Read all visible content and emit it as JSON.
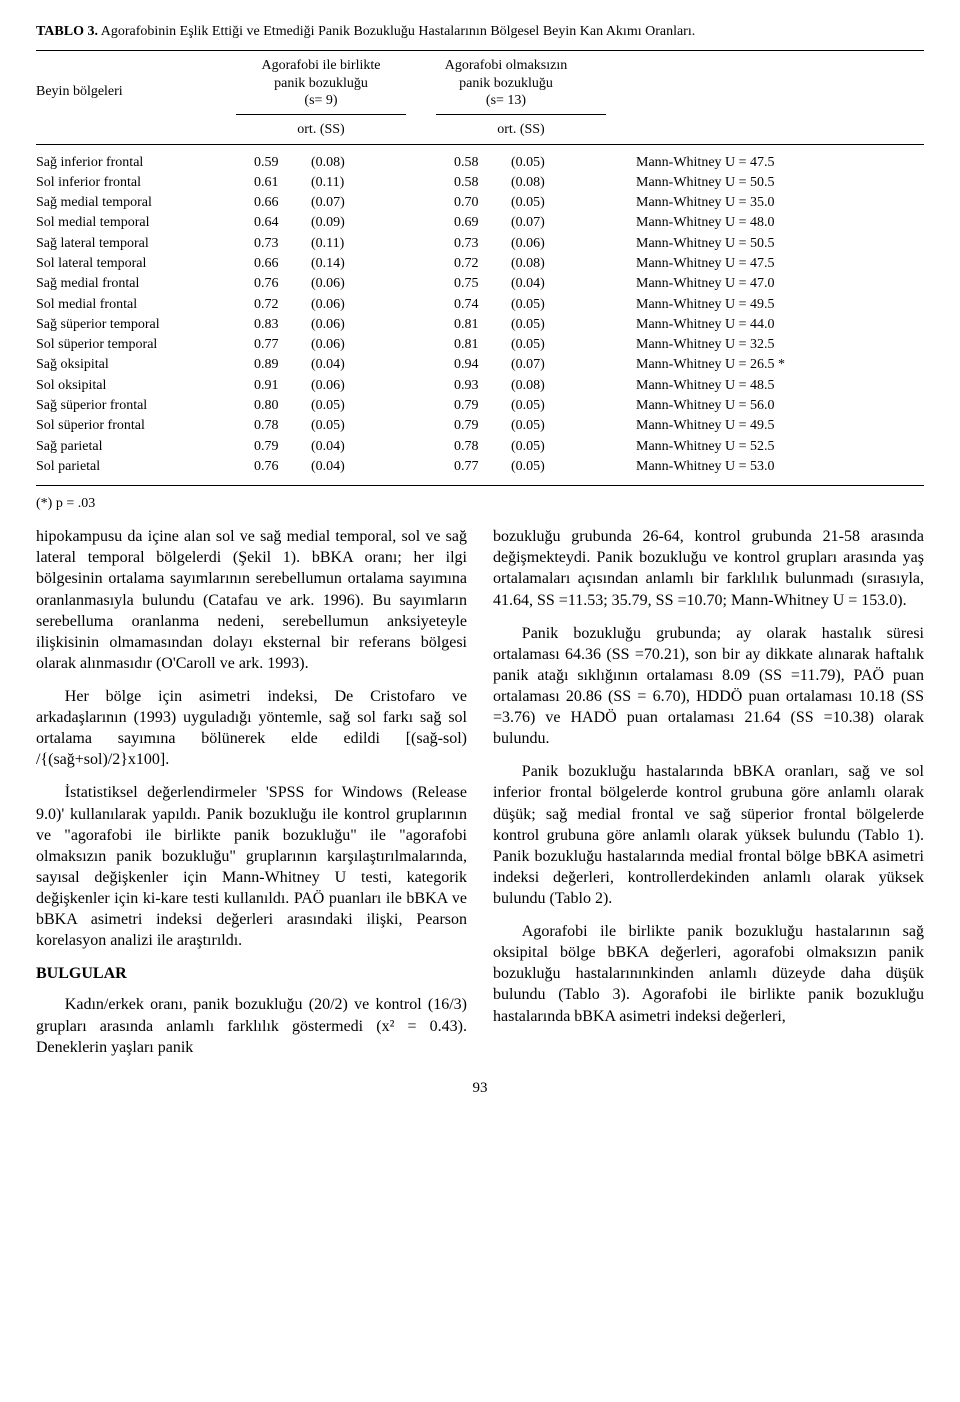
{
  "table": {
    "label": "TABLO 3.",
    "caption": "Agorafobinin Eşlik Ettiği ve Etmediği Panik Bozukluğu Hastalarının Bölgesel Beyin Kan Akımı Oranları.",
    "row_header": "Beyin bölgeleri",
    "group1": {
      "l1": "Agorafobi ile birlikte",
      "l2": "panik bozukluğu",
      "l3": "(s= 9)"
    },
    "group2": {
      "l1": "Agorafobi olmaksızın",
      "l2": "panik bozukluğu",
      "l3": "(s= 13)"
    },
    "subheader": "ort. (SS)",
    "rows": [
      {
        "region": "Sağ inferior frontal",
        "m1": "0.59",
        "s1": "(0.08)",
        "m2": "0.58",
        "s2": "(0.05)",
        "stat": "Mann-Whitney U = 47.5"
      },
      {
        "region": "Sol  inferior frontal",
        "m1": "0.61",
        "s1": "(0.11)",
        "m2": "0.58",
        "s2": "(0.08)",
        "stat": "Mann-Whitney U = 50.5"
      },
      {
        "region": "Sağ medial temporal",
        "m1": "0.66",
        "s1": "(0.07)",
        "m2": "0.70",
        "s2": "(0.05)",
        "stat": "Mann-Whitney U = 35.0"
      },
      {
        "region": "Sol medial temporal",
        "m1": "0.64",
        "s1": "(0.09)",
        "m2": "0.69",
        "s2": "(0.07)",
        "stat": "Mann-Whitney U = 48.0"
      },
      {
        "region": "Sağ lateral temporal",
        "m1": "0.73",
        "s1": "(0.11)",
        "m2": "0.73",
        "s2": "(0.06)",
        "stat": "Mann-Whitney U = 50.5"
      },
      {
        "region": "Sol lateral temporal",
        "m1": "0.66",
        "s1": "(0.14)",
        "m2": "0.72",
        "s2": "(0.08)",
        "stat": "Mann-Whitney U = 47.5"
      },
      {
        "region": "Sağ medial frontal",
        "m1": "0.76",
        "s1": "(0.06)",
        "m2": "0.75",
        "s2": "(0.04)",
        "stat": "Mann-Whitney U = 47.0"
      },
      {
        "region": "Sol medial frontal",
        "m1": "0.72",
        "s1": "(0.06)",
        "m2": "0.74",
        "s2": "(0.05)",
        "stat": "Mann-Whitney U = 49.5"
      },
      {
        "region": "Sağ süperior temporal",
        "m1": "0.83",
        "s1": "(0.06)",
        "m2": "0.81",
        "s2": "(0.05)",
        "stat": "Mann-Whitney U = 44.0"
      },
      {
        "region": "Sol süperior temporal",
        "m1": "0.77",
        "s1": "(0.06)",
        "m2": "0.81",
        "s2": "(0.05)",
        "stat": "Mann-Whitney U = 32.5"
      },
      {
        "region": "Sağ oksipital",
        "m1": "0.89",
        "s1": "(0.04)",
        "m2": "0.94",
        "s2": "(0.07)",
        "stat": "Mann-Whitney U = 26.5 *"
      },
      {
        "region": "Sol oksipital",
        "m1": "0.91",
        "s1": "(0.06)",
        "m2": "0.93",
        "s2": "(0.08)",
        "stat": "Mann-Whitney U = 48.5"
      },
      {
        "region": "Sağ süperior frontal",
        "m1": "0.80",
        "s1": "(0.05)",
        "m2": "0.79",
        "s2": "(0.05)",
        "stat": "Mann-Whitney U = 56.0"
      },
      {
        "region": "Sol süperior frontal",
        "m1": "0.78",
        "s1": "(0.05)",
        "m2": "0.79",
        "s2": "(0.05)",
        "stat": "Mann-Whitney U = 49.5"
      },
      {
        "region": "Sağ parietal",
        "m1": "0.79",
        "s1": "(0.04)",
        "m2": "0.78",
        "s2": "(0.05)",
        "stat": "Mann-Whitney U = 52.5"
      },
      {
        "region": "Sol parietal",
        "m1": "0.76",
        "s1": "(0.04)",
        "m2": "0.77",
        "s2": "(0.05)",
        "stat": "Mann-Whitney U = 53.0"
      }
    ],
    "footnote": "(*)  p = .03"
  },
  "body": {
    "left": {
      "p1": "hipokampusu da içine alan sol ve sağ medial temporal, sol ve sağ lateral  temporal bölgelerdi (Şekil 1). bBKA oranı; her ilgi bölgesinin ortalama sayımlarının serebellumun ortalama sayımına oranlanmasıyla bulundu (Catafau ve ark. 1996). Bu sayımların serebelluma oranlanma nedeni, serebellumun anksiyeteyle ilişkisinin olmamasından dolayı eksternal bir referans bölgesi olarak alınmasıdır (O'Caroll ve ark. 1993).",
      "p2": "Her bölge için asimetri indeksi, De Cristofaro ve arkadaşlarının (1993) uyguladığı yöntemle, sağ sol farkı sağ sol ortalama sayımına bölünerek elde edildi [(sağ-sol) /{(sağ+sol)/2}x100].",
      "p3": "İstatistiksel değerlendirmeler 'SPSS for Windows (Release 9.0)' kullanılarak yapıldı. Panik bozukluğu ile kontrol gruplarının ve \"agorafobi ile birlikte panik bozukluğu\" ile \"agorafobi olmaksızın panik bozukluğu\" gruplarının karşılaştırılmalarında, sayısal değişkenler için Mann-Whitney U testi, kategorik değişkenler için ki-kare testi kullanıldı. PAÖ puanları ile bBKA ve bBKA asimetri indeksi değerleri arasındaki ilişki, Pearson korelasyon analizi ile araştırıldı.",
      "h": "BULGULAR",
      "p4": "Kadın/erkek oranı, panik bozukluğu (20/2) ve kontrol (16/3) grupları arasında anlamlı farklılık göstermedi (x² = 0.43). Deneklerin yaşları panik"
    },
    "right": {
      "p1": "bozukluğu grubunda 26-64, kontrol grubunda 21-58 arasında değişmekteydi. Panik bozukluğu ve kontrol grupları arasında yaş ortalamaları açısından anlamlı bir farklılık bulunmadı (sırasıyla, 41.64, SS =11.53; 35.79, SS =10.70; Mann-Whitney U = 153.0).",
      "p2": "Panik bozukluğu grubunda; ay olarak hastalık süresi ortalaması 64.36 (SS =70.21), son bir ay dikkate alınarak haftalık panik atağı sıklığının ortalaması 8.09 (SS =11.79), PAÖ puan ortalaması 20.86 (SS = 6.70), HDDÖ puan ortalaması 10.18 (SS =3.76) ve HADÖ puan ortalaması 21.64 (SS =10.38) olarak bulundu.",
      "p3": "Panik bozukluğu hastalarında bBKA oranları, sağ ve sol inferior frontal bölgelerde kontrol grubuna göre anlamlı olarak düşük; sağ medial frontal ve sağ süperior frontal bölgelerde kontrol grubuna göre anlamlı olarak yüksek bulundu (Tablo 1). Panik bozukluğu hastalarında medial frontal bölge bBKA asimetri indeksi değerleri, kontrollerdekinden anlamlı olarak yüksek bulundu (Tablo 2).",
      "p4": "Agorafobi ile birlikte panik bozukluğu hastalarının sağ oksipital bölge bBKA değerleri, agorafobi olmaksızın panik bozukluğu hastalarınınkinden anlamlı düzeyde daha düşük bulundu (Tablo 3). Agorafobi ile birlikte panik bozukluğu hastalarında bBKA asimetri indeksi değerleri,"
    }
  },
  "page_number": "93"
}
